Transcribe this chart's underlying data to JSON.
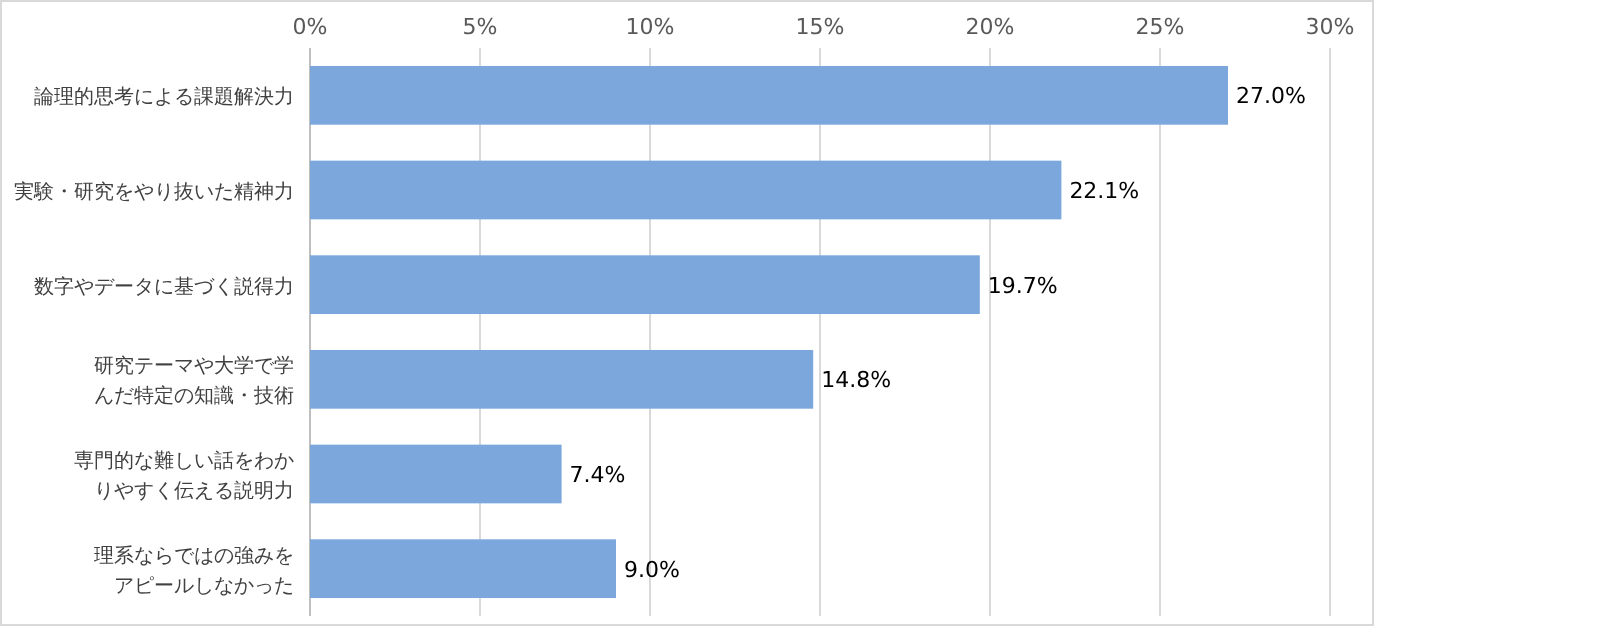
{
  "chart_data": {
    "type": "bar",
    "orientation": "horizontal",
    "categories": [
      "論理的思考による課題解決力",
      "実験・研究をやり抜いた精神力",
      "数字やデータに基づく説得力",
      "研究テーマや大学で学んだ特定の知識・技術",
      "専門的な難しい話をわかりやすく伝える説明力",
      "理系ならではの強みをアピールしなかった"
    ],
    "values": [
      27.0,
      22.1,
      19.7,
      14.8,
      7.4,
      9.0
    ],
    "value_labels": [
      "27.0%",
      "22.1%",
      "19.7%",
      "14.8%",
      "7.4%",
      "9.0%"
    ],
    "color": "#7ba7dc",
    "xlim": [
      0,
      30
    ],
    "xticks": [
      {
        "value": 0,
        "label": "0%"
      },
      {
        "value": 5,
        "label": "5%"
      },
      {
        "value": 10,
        "label": "10%"
      },
      {
        "value": 15,
        "label": "15%"
      },
      {
        "value": 20,
        "label": "20%"
      },
      {
        "value": 25,
        "label": "25%"
      },
      {
        "value": 30,
        "label": "30%"
      }
    ],
    "grid": "x"
  }
}
